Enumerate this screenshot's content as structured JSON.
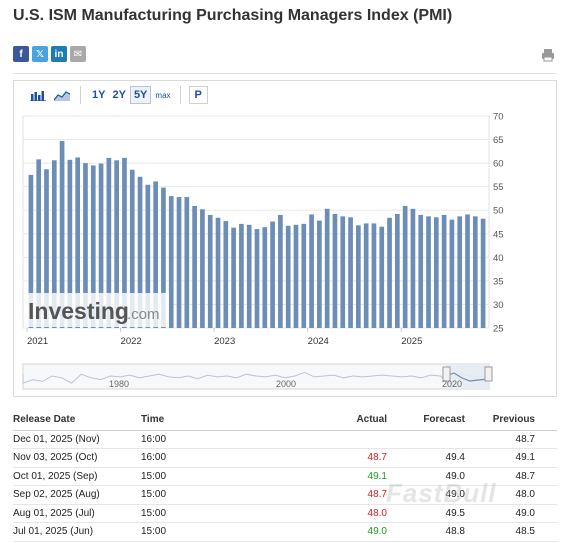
{
  "page": {
    "title": "U.S. ISM Manufacturing Purchasing Managers Index (PMI)",
    "watermark": "FastBull"
  },
  "share": [
    {
      "name": "facebook-share-button",
      "icon": "facebook-icon",
      "glyph": "f",
      "color": "#3b5998"
    },
    {
      "name": "twitter-share-button",
      "icon": "twitter-icon",
      "glyph": "𝕏",
      "color": "#4aa3df"
    },
    {
      "name": "linkedin-share-button",
      "icon": "linkedin-icon",
      "glyph": "in",
      "color": "#1f7bb6"
    },
    {
      "name": "email-share-button",
      "icon": "email-icon",
      "glyph": "✉",
      "color": "#a9a9a9"
    }
  ],
  "toolbar": {
    "chart_types": [
      "bar-chart-icon",
      "area-chart-icon"
    ],
    "ranges": [
      {
        "label": "1Y",
        "active": false
      },
      {
        "label": "2Y",
        "active": false
      },
      {
        "label": "5Y",
        "active": true
      },
      {
        "label": "max",
        "active": false
      }
    ],
    "p_label": "P"
  },
  "colors": {
    "bar": "#6b8db6",
    "grid": "#e8e8e8",
    "axis_text": "#555555",
    "navigator_line": "#6b8db6",
    "navigator_fill": "#e6ebf2"
  },
  "chart_data": {
    "type": "bar",
    "yticks": [
      25,
      30,
      35,
      40,
      45,
      50,
      55,
      60,
      65,
      70
    ],
    "ylim": [
      25,
      70
    ],
    "x_labels": [
      "2021",
      "2022",
      "2023",
      "2024",
      "2025"
    ],
    "x_label_positions": [
      0,
      12,
      24,
      36,
      48
    ],
    "values": [
      57.5,
      60.8,
      58.7,
      60.6,
      64.7,
      60.7,
      61.2,
      60.0,
      59.5,
      59.9,
      61.1,
      60.6,
      61.1,
      58.6,
      57.1,
      55.4,
      56.1,
      54.8,
      53.0,
      52.8,
      52.8,
      50.9,
      50.2,
      49.0,
      48.4,
      47.7,
      46.3,
      47.1,
      46.9,
      46.0,
      46.4,
      47.6,
      49.0,
      46.7,
      46.9,
      47.1,
      49.1,
      47.8,
      50.3,
      49.2,
      48.7,
      48.5,
      46.8,
      47.2,
      47.2,
      46.5,
      48.4,
      49.2,
      50.9,
      50.3,
      49.0,
      48.7,
      48.5,
      49.0,
      48.0,
      48.7,
      49.1,
      48.7,
      48.2
    ],
    "navigator_labels": [
      "1980",
      "2000",
      "2020"
    ]
  },
  "table": {
    "headers": {
      "release_date": "Release Date",
      "time": "Time",
      "actual": "Actual",
      "forecast": "Forecast",
      "previous": "Previous"
    },
    "rows": [
      {
        "date": "Dec 01, 2025 (Nov)",
        "time": "16:00",
        "actual": "",
        "actual_color": "",
        "forecast": "",
        "previous": "48.7"
      },
      {
        "date": "Nov 03, 2025 (Oct)",
        "time": "16:00",
        "actual": "48.7",
        "actual_color": "red",
        "forecast": "49.4",
        "previous": "49.1"
      },
      {
        "date": "Oct 01, 2025 (Sep)",
        "time": "15:00",
        "actual": "49.1",
        "actual_color": "green",
        "forecast": "49.0",
        "previous": "48.7"
      },
      {
        "date": "Sep 02, 2025 (Aug)",
        "time": "15:00",
        "actual": "48.7",
        "actual_color": "red",
        "forecast": "49.0",
        "previous": "48.0"
      },
      {
        "date": "Aug 01, 2025 (Jul)",
        "time": "15:00",
        "actual": "48.0",
        "actual_color": "red",
        "forecast": "49.5",
        "previous": "49.0"
      },
      {
        "date": "Jul 01, 2025 (Jun)",
        "time": "15:00",
        "actual": "49.0",
        "actual_color": "green",
        "forecast": "48.8",
        "previous": "48.5"
      }
    ]
  }
}
